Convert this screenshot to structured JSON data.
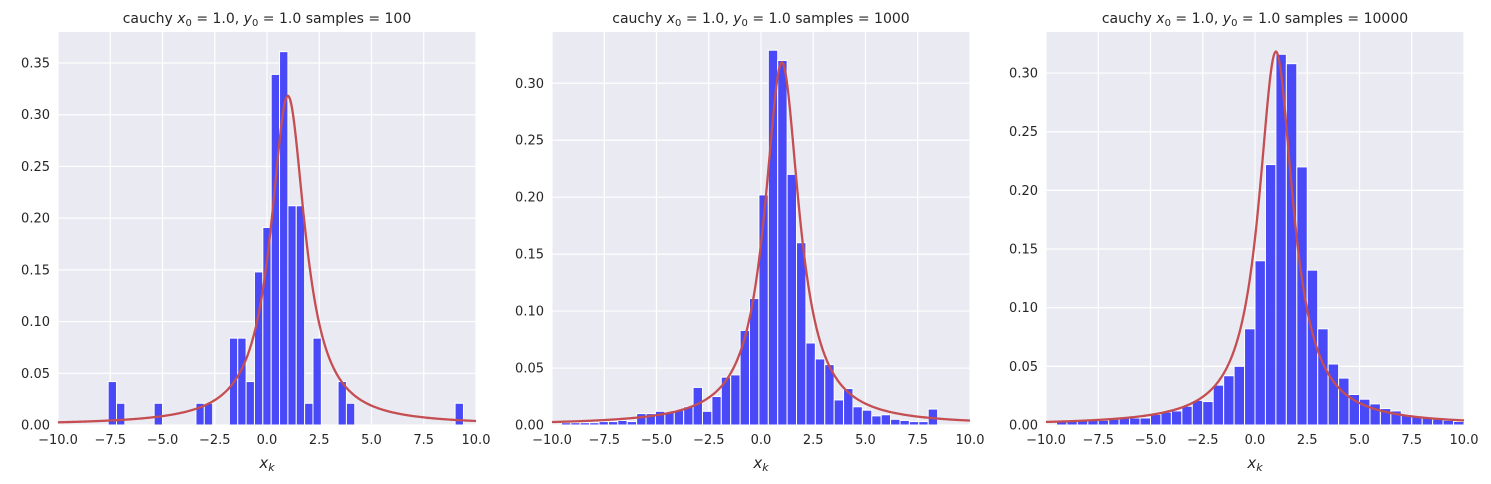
{
  "colors": {
    "background": "#eaeaf2",
    "grid": "#ffffff",
    "bar": "#4040f8",
    "bar_edge": "#ffffff",
    "curve": "#c44e52"
  },
  "chart_data": [
    {
      "type": "bar",
      "title_prefix": "cauchy ",
      "title_x": "x",
      "title_x_sub": "0",
      "title_eq_x": " = 1.0, ",
      "title_y": "y",
      "title_y_sub": "0",
      "title_eq_y": " = 1.0  samples = 100",
      "xlabel": "x",
      "xlabel_sub": "k",
      "xlim": [
        -10,
        10
      ],
      "ylim": [
        0,
        0.38
      ],
      "xticks": [
        -10,
        -7.5,
        -5,
        -2.5,
        0,
        2.5,
        5,
        7.5,
        10
      ],
      "xtick_labels": [
        "−10.0",
        "−7.5",
        "−5.0",
        "−2.5",
        "0.0",
        "2.5",
        "5.0",
        "7.5",
        "10.0"
      ],
      "yticks": [
        0,
        0.05,
        0.1,
        0.15,
        0.2,
        0.25,
        0.3,
        0.35
      ],
      "ytick_labels": [
        "0.00",
        "0.05",
        "0.10",
        "0.15",
        "0.20",
        "0.25",
        "0.30",
        "0.35"
      ],
      "bin_width": 0.4,
      "bins": [
        {
          "x0": -7.6,
          "value": 0.042
        },
        {
          "x0": -7.2,
          "value": 0.021
        },
        {
          "x0": -5.4,
          "value": 0.021
        },
        {
          "x0": -3.4,
          "value": 0.021
        },
        {
          "x0": -3.0,
          "value": 0.021
        },
        {
          "x0": -1.8,
          "value": 0.084
        },
        {
          "x0": -1.4,
          "value": 0.084
        },
        {
          "x0": -1.0,
          "value": 0.042
        },
        {
          "x0": -0.6,
          "value": 0.148
        },
        {
          "x0": -0.2,
          "value": 0.191
        },
        {
          "x0": 0.2,
          "value": 0.339
        },
        {
          "x0": 0.6,
          "value": 0.361
        },
        {
          "x0": 1.0,
          "value": 0.212
        },
        {
          "x0": 1.4,
          "value": 0.212
        },
        {
          "x0": 1.8,
          "value": 0.021
        },
        {
          "x0": 2.2,
          "value": 0.084
        },
        {
          "x0": 3.4,
          "value": 0.042
        },
        {
          "x0": 3.8,
          "value": 0.021
        },
        {
          "x0": 9.0,
          "value": 0.021
        }
      ],
      "pdf": {
        "x0": 1.0,
        "gamma": 1.0
      }
    },
    {
      "type": "bar",
      "title_prefix": "cauchy ",
      "title_x": "x",
      "title_x_sub": "0",
      "title_eq_x": " = 1.0, ",
      "title_y": "y",
      "title_y_sub": "0",
      "title_eq_y": " = 1.0  samples = 1000",
      "xlabel": "x",
      "xlabel_sub": "k",
      "xlim": [
        -10,
        10
      ],
      "ylim": [
        0,
        0.345
      ],
      "xticks": [
        -10,
        -7.5,
        -5,
        -2.5,
        0,
        2.5,
        5,
        7.5,
        10
      ],
      "xtick_labels": [
        "−10.0",
        "−7.5",
        "−5.0",
        "−2.5",
        "0.0",
        "2.5",
        "5.0",
        "7.5",
        "10.0"
      ],
      "yticks": [
        0,
        0.05,
        0.1,
        0.15,
        0.2,
        0.25,
        0.3
      ],
      "ytick_labels": [
        "0.00",
        "0.05",
        "0.10",
        "0.15",
        "0.20",
        "0.25",
        "0.30"
      ],
      "bin_width": 0.45,
      "bins": [
        {
          "x0": -9.55,
          "value": 0.002
        },
        {
          "x0": -9.1,
          "value": 0.002
        },
        {
          "x0": -8.65,
          "value": 0.002
        },
        {
          "x0": -8.2,
          "value": 0.002
        },
        {
          "x0": -7.75,
          "value": 0.003
        },
        {
          "x0": -7.3,
          "value": 0.003
        },
        {
          "x0": -6.85,
          "value": 0.004
        },
        {
          "x0": -6.4,
          "value": 0.003
        },
        {
          "x0": -5.95,
          "value": 0.01
        },
        {
          "x0": -5.5,
          "value": 0.01
        },
        {
          "x0": -5.05,
          "value": 0.012
        },
        {
          "x0": -4.6,
          "value": 0.011
        },
        {
          "x0": -4.15,
          "value": 0.013
        },
        {
          "x0": -3.7,
          "value": 0.016
        },
        {
          "x0": -3.25,
          "value": 0.033
        },
        {
          "x0": -2.8,
          "value": 0.012
        },
        {
          "x0": -2.35,
          "value": 0.025
        },
        {
          "x0": -1.9,
          "value": 0.042
        },
        {
          "x0": -1.45,
          "value": 0.044
        },
        {
          "x0": -1.0,
          "value": 0.083
        },
        {
          "x0": -0.55,
          "value": 0.111
        },
        {
          "x0": -0.1,
          "value": 0.202
        },
        {
          "x0": 0.35,
          "value": 0.329
        },
        {
          "x0": 0.8,
          "value": 0.32
        },
        {
          "x0": 1.25,
          "value": 0.22
        },
        {
          "x0": 1.7,
          "value": 0.16
        },
        {
          "x0": 2.15,
          "value": 0.072
        },
        {
          "x0": 2.6,
          "value": 0.058
        },
        {
          "x0": 3.05,
          "value": 0.053
        },
        {
          "x0": 3.5,
          "value": 0.022
        },
        {
          "x0": 3.95,
          "value": 0.032
        },
        {
          "x0": 4.4,
          "value": 0.016
        },
        {
          "x0": 4.85,
          "value": 0.013
        },
        {
          "x0": 5.3,
          "value": 0.008
        },
        {
          "x0": 5.75,
          "value": 0.009
        },
        {
          "x0": 6.2,
          "value": 0.005
        },
        {
          "x0": 6.65,
          "value": 0.004
        },
        {
          "x0": 7.1,
          "value": 0.003
        },
        {
          "x0": 7.55,
          "value": 0.003
        },
        {
          "x0": 8.0,
          "value": 0.014
        }
      ],
      "pdf": {
        "x0": 1.0,
        "gamma": 1.0
      }
    },
    {
      "type": "bar",
      "title_prefix": "cauchy ",
      "title_x": "x",
      "title_x_sub": "0",
      "title_eq_x": " = 1.0, ",
      "title_y": "y",
      "title_y_sub": "0",
      "title_eq_y": " = 1.0  samples = 10000",
      "xlabel": "x",
      "xlabel_sub": "k",
      "xlim": [
        -10,
        10
      ],
      "ylim": [
        0,
        0.335
      ],
      "xticks": [
        -10,
        -7.5,
        -5,
        -2.5,
        0,
        2.5,
        5,
        7.5,
        10
      ],
      "xtick_labels": [
        "−10.0",
        "−7.5",
        "−5.0",
        "−2.5",
        "0.0",
        "2.5",
        "5.0",
        "7.5",
        "10.0"
      ],
      "yticks": [
        0,
        0.05,
        0.1,
        0.15,
        0.2,
        0.25,
        0.3
      ],
      "ytick_labels": [
        "0.00",
        "0.05",
        "0.10",
        "0.15",
        "0.20",
        "0.25",
        "0.30"
      ],
      "bin_width": 0.5,
      "bins": [
        {
          "x0": -9.5,
          "value": 0.003
        },
        {
          "x0": -9.0,
          "value": 0.004
        },
        {
          "x0": -8.5,
          "value": 0.004
        },
        {
          "x0": -8.0,
          "value": 0.004
        },
        {
          "x0": -7.5,
          "value": 0.004
        },
        {
          "x0": -7.0,
          "value": 0.005
        },
        {
          "x0": -6.5,
          "value": 0.006
        },
        {
          "x0": -6.0,
          "value": 0.006
        },
        {
          "x0": -5.5,
          "value": 0.006
        },
        {
          "x0": -5.0,
          "value": 0.009
        },
        {
          "x0": -4.5,
          "value": 0.011
        },
        {
          "x0": -4.0,
          "value": 0.012
        },
        {
          "x0": -3.5,
          "value": 0.016
        },
        {
          "x0": -3.0,
          "value": 0.021
        },
        {
          "x0": -2.5,
          "value": 0.02
        },
        {
          "x0": -2.0,
          "value": 0.034
        },
        {
          "x0": -1.5,
          "value": 0.042
        },
        {
          "x0": -1.0,
          "value": 0.05
        },
        {
          "x0": -0.5,
          "value": 0.082
        },
        {
          "x0": 0.0,
          "value": 0.14
        },
        {
          "x0": 0.5,
          "value": 0.222
        },
        {
          "x0": 1.0,
          "value": 0.316
        },
        {
          "x0": 1.5,
          "value": 0.308
        },
        {
          "x0": 2.0,
          "value": 0.22
        },
        {
          "x0": 2.5,
          "value": 0.132
        },
        {
          "x0": 3.0,
          "value": 0.082
        },
        {
          "x0": 3.5,
          "value": 0.052
        },
        {
          "x0": 4.0,
          "value": 0.04
        },
        {
          "x0": 4.5,
          "value": 0.026
        },
        {
          "x0": 5.0,
          "value": 0.022
        },
        {
          "x0": 5.5,
          "value": 0.018
        },
        {
          "x0": 6.0,
          "value": 0.014
        },
        {
          "x0": 6.5,
          "value": 0.012
        },
        {
          "x0": 7.0,
          "value": 0.009
        },
        {
          "x0": 7.5,
          "value": 0.007
        },
        {
          "x0": 8.0,
          "value": 0.006
        },
        {
          "x0": 8.5,
          "value": 0.005
        },
        {
          "x0": 9.0,
          "value": 0.004
        },
        {
          "x0": 9.5,
          "value": 0.003
        }
      ],
      "pdf": {
        "x0": 1.0,
        "gamma": 1.0
      }
    }
  ]
}
